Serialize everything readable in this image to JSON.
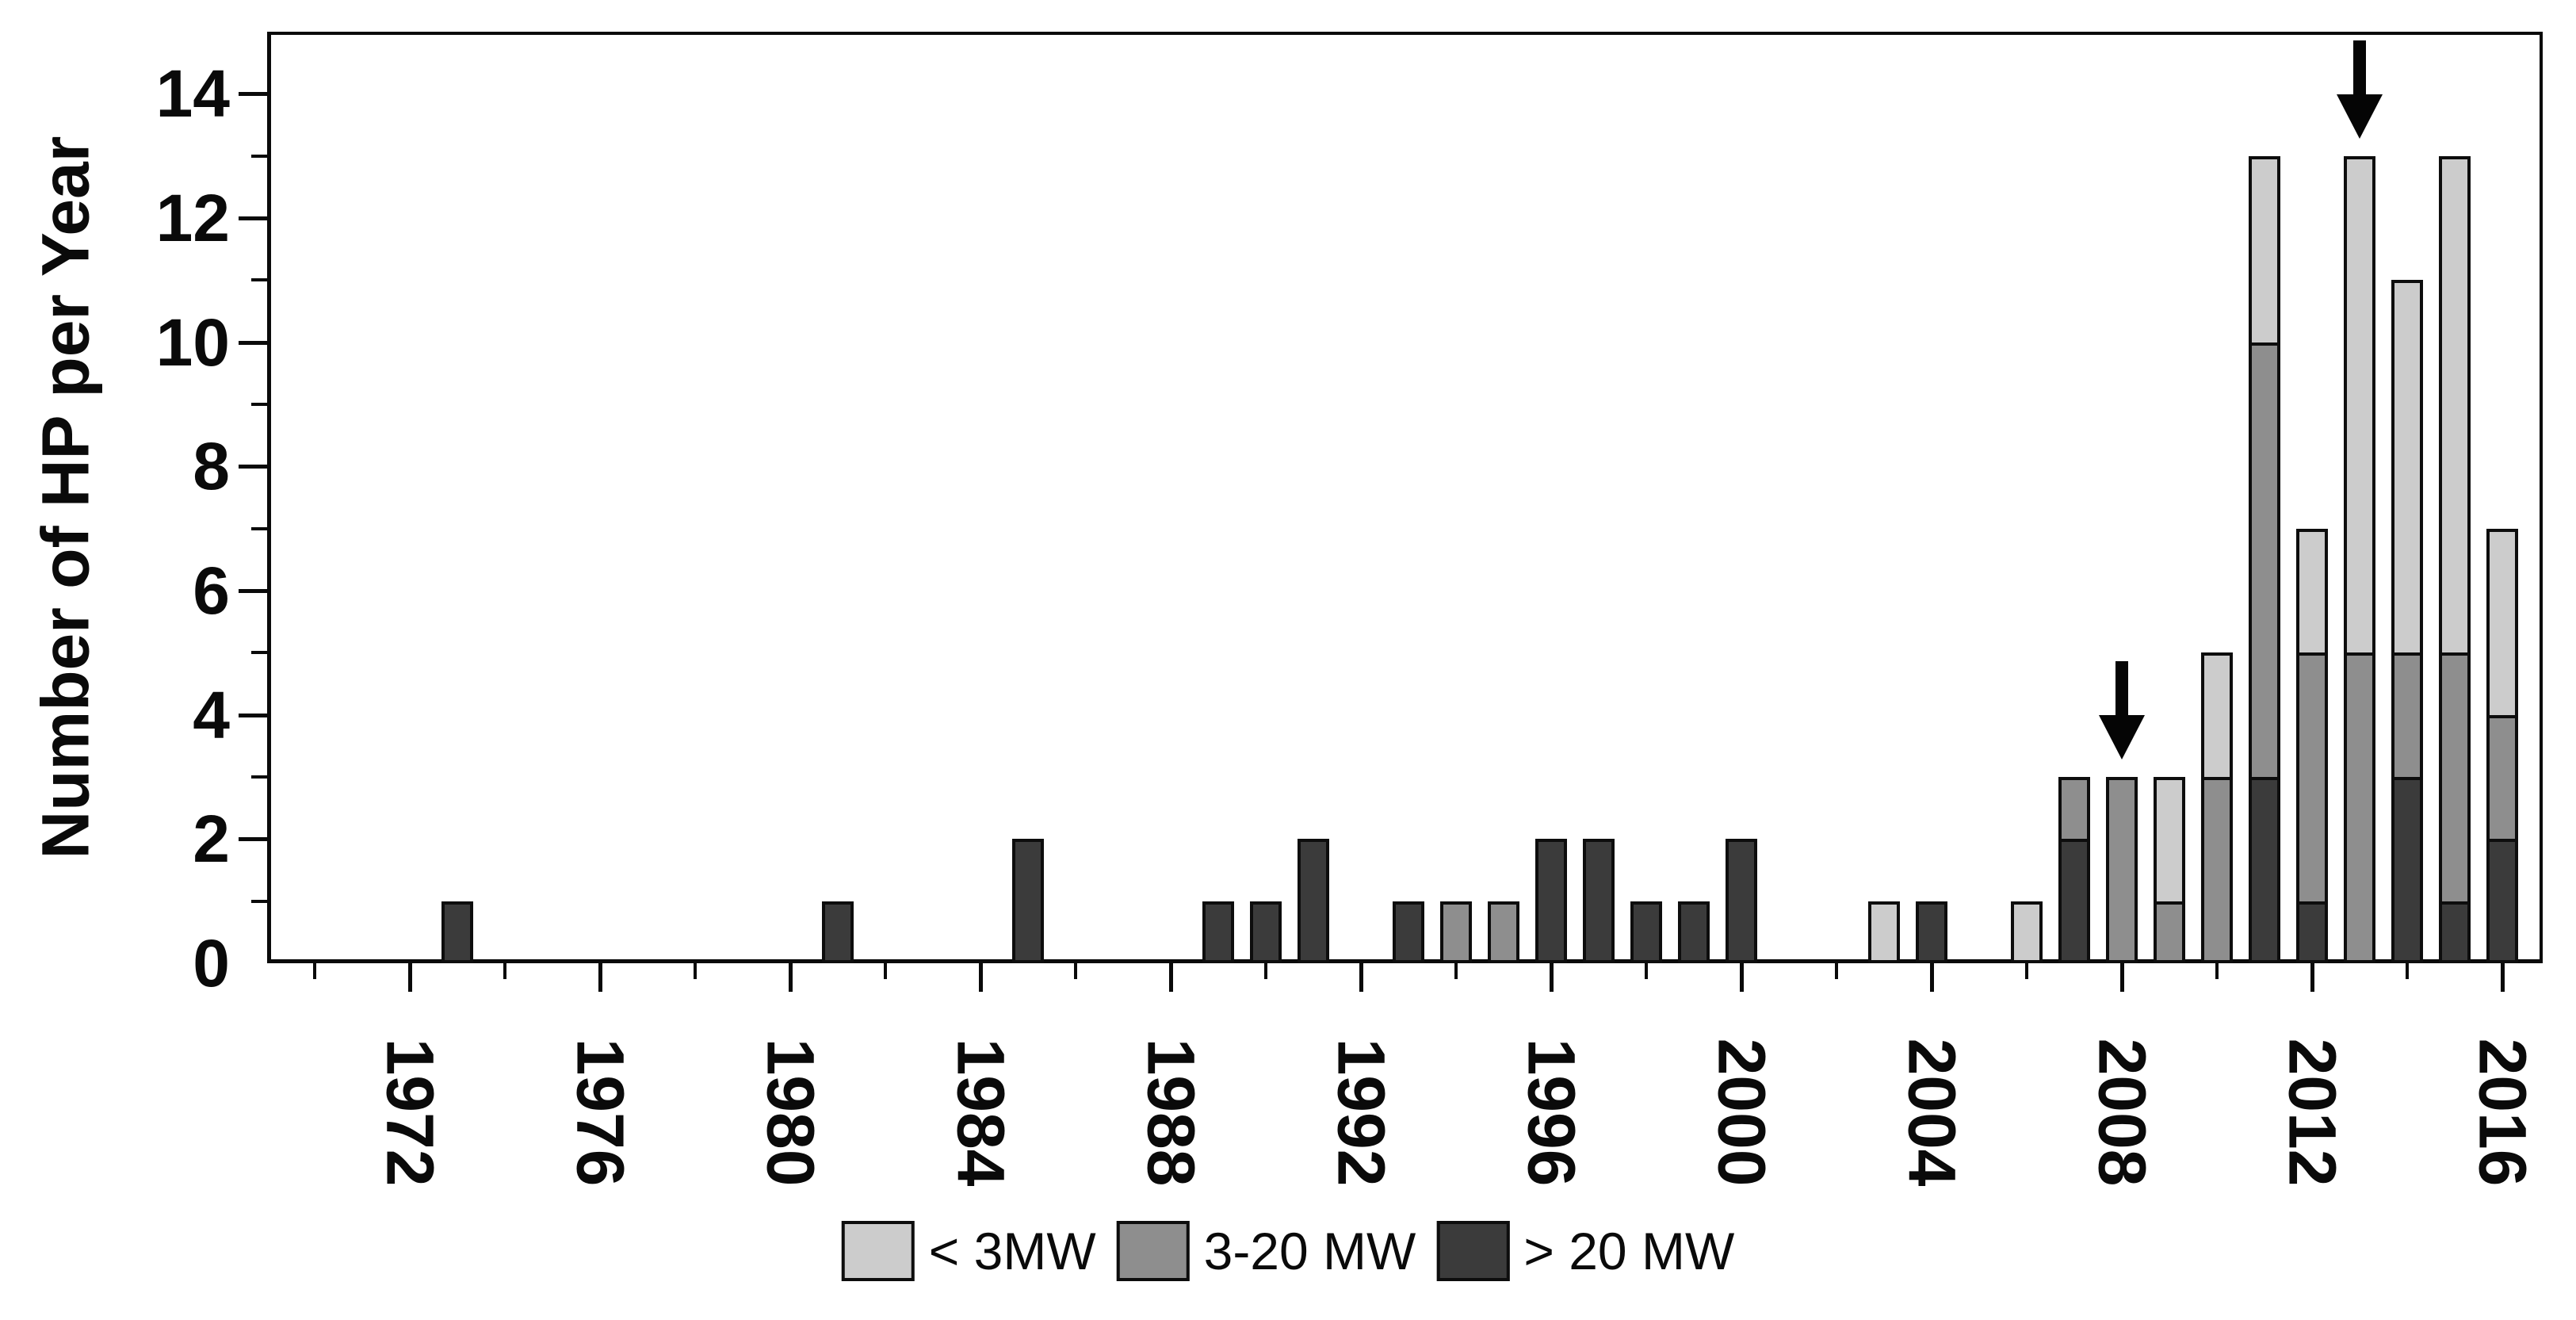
{
  "chart_data": {
    "type": "bar",
    "stacked": true,
    "title": "",
    "xlabel": "",
    "ylabel": "Number of HP per Year",
    "ylim": [
      0,
      15
    ],
    "xlim": [
      1969,
      2016.85
    ],
    "grid": false,
    "legend_position": "bottom-center",
    "y_ticks": {
      "label_values": [
        0,
        2,
        4,
        6,
        8,
        10,
        12,
        14
      ],
      "minor_step": 1,
      "major_step": 2
    },
    "x_ticks": {
      "start": 1970,
      "end": 2016,
      "step": 2,
      "label_values": [
        1972,
        1976,
        1980,
        1984,
        1988,
        1992,
        1996,
        2000,
        2004,
        2008,
        2012,
        2016
      ]
    },
    "series": [
      {
        "key": "gt20",
        "name": "> 20 MW",
        "color": "#3b3b3b"
      },
      {
        "key": "mw3_20",
        "name": "3-20 MW",
        "color": "#8e8e8e"
      },
      {
        "key": "lt3",
        "name": "< 3MW",
        "color": "#cccccc"
      }
    ],
    "legend_order": [
      "lt3",
      "mw3_20",
      "gt20"
    ],
    "bars": [
      {
        "year": 1973,
        "gt20": 1,
        "mw3_20": 0,
        "lt3": 0
      },
      {
        "year": 1981,
        "gt20": 1,
        "mw3_20": 0,
        "lt3": 0
      },
      {
        "year": 1985,
        "gt20": 2,
        "mw3_20": 0,
        "lt3": 0
      },
      {
        "year": 1989,
        "gt20": 1,
        "mw3_20": 0,
        "lt3": 0
      },
      {
        "year": 1990,
        "gt20": 1,
        "mw3_20": 0,
        "lt3": 0
      },
      {
        "year": 1991,
        "gt20": 2,
        "mw3_20": 0,
        "lt3": 0
      },
      {
        "year": 1993,
        "gt20": 1,
        "mw3_20": 0,
        "lt3": 0
      },
      {
        "year": 1994,
        "gt20": 0,
        "mw3_20": 1,
        "lt3": 0
      },
      {
        "year": 1995,
        "gt20": 0,
        "mw3_20": 1,
        "lt3": 0
      },
      {
        "year": 1996,
        "gt20": 2,
        "mw3_20": 0,
        "lt3": 0
      },
      {
        "year": 1997,
        "gt20": 2,
        "mw3_20": 0,
        "lt3": 0
      },
      {
        "year": 1998,
        "gt20": 1,
        "mw3_20": 0,
        "lt3": 0
      },
      {
        "year": 1999,
        "gt20": 1,
        "mw3_20": 0,
        "lt3": 0
      },
      {
        "year": 2000,
        "gt20": 2,
        "mw3_20": 0,
        "lt3": 0
      },
      {
        "year": 2003,
        "gt20": 0,
        "mw3_20": 0,
        "lt3": 1
      },
      {
        "year": 2004,
        "gt20": 1,
        "mw3_20": 0,
        "lt3": 0
      },
      {
        "year": 2006,
        "gt20": 0,
        "mw3_20": 0,
        "lt3": 1
      },
      {
        "year": 2007,
        "gt20": 2,
        "mw3_20": 1,
        "lt3": 0
      },
      {
        "year": 2008,
        "gt20": 0,
        "mw3_20": 3,
        "lt3": 0
      },
      {
        "year": 2009,
        "gt20": 0,
        "mw3_20": 1,
        "lt3": 2
      },
      {
        "year": 2010,
        "gt20": 0,
        "mw3_20": 3,
        "lt3": 2
      },
      {
        "year": 2011,
        "gt20": 3,
        "mw3_20": 7,
        "lt3": 3
      },
      {
        "year": 2012,
        "gt20": 1,
        "mw3_20": 4,
        "lt3": 2
      },
      {
        "year": 2013,
        "gt20": 0,
        "mw3_20": 5,
        "lt3": 8
      },
      {
        "year": 2014,
        "gt20": 3,
        "mw3_20": 2,
        "lt3": 6
      },
      {
        "year": 2015,
        "gt20": 1,
        "mw3_20": 4,
        "lt3": 8
      },
      {
        "year": 2016,
        "gt20": 2,
        "mw3_20": 2,
        "lt3": 3
      }
    ],
    "annotations": [
      {
        "type": "arrow-down",
        "year": 2008,
        "points_to_value": 3
      },
      {
        "type": "arrow-down",
        "year": 2013,
        "points_to_value": 13
      }
    ]
  }
}
